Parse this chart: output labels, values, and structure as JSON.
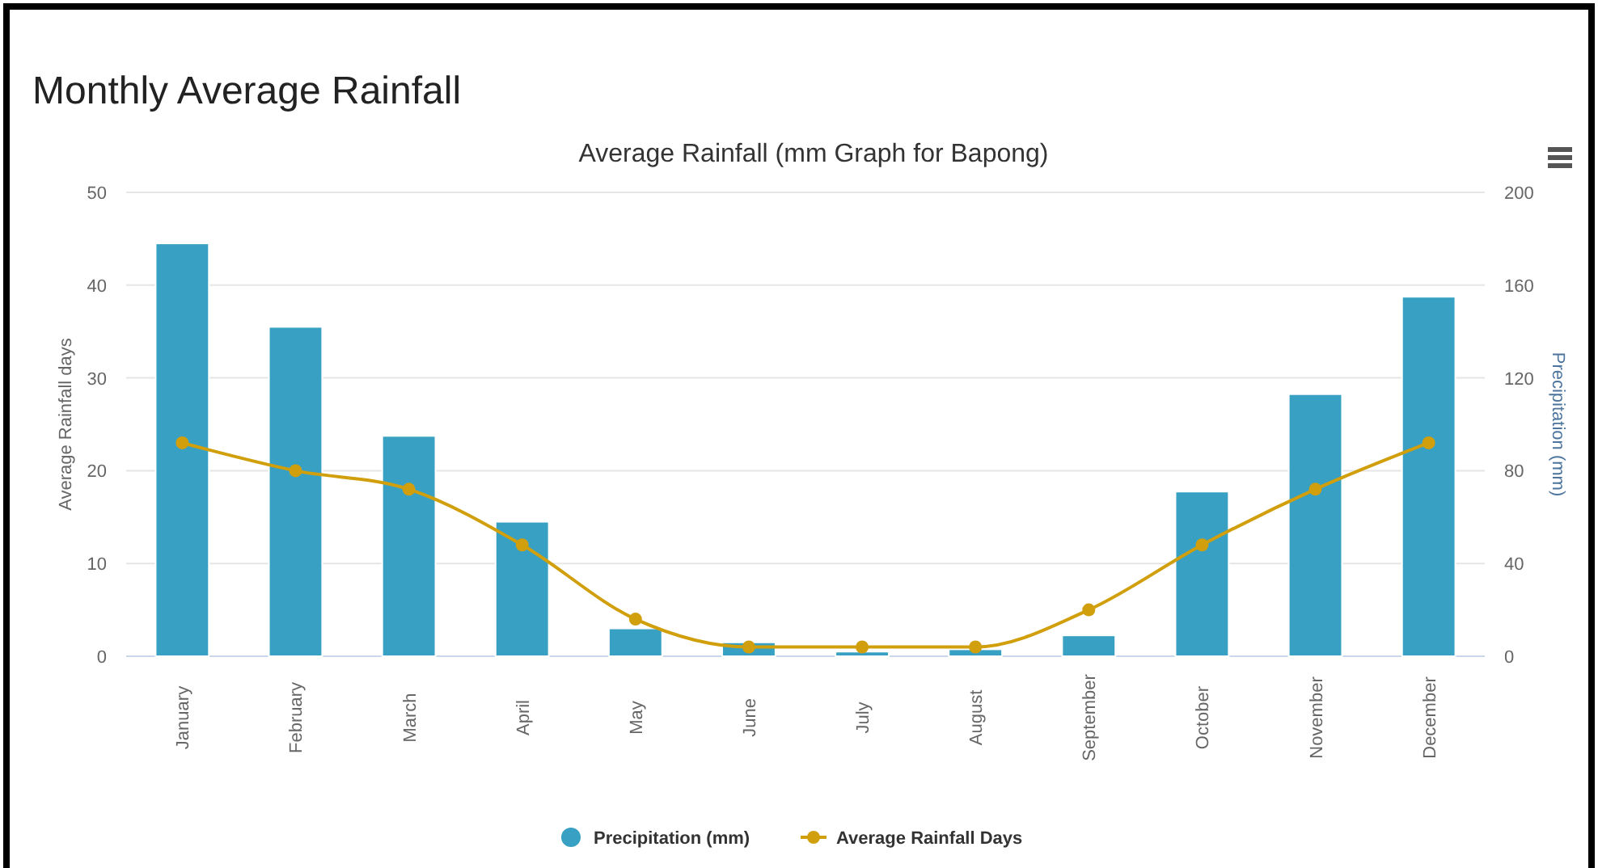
{
  "chart_data": {
    "type": "bar",
    "title": "Monthly Average Rainfall",
    "subtitle": "Average Rainfall (mm Graph for Bapong)",
    "ylabel": "Average Rainfall days",
    "y2label": "Precipitation (mm)",
    "categories": [
      "January",
      "February",
      "March",
      "April",
      "May",
      "June",
      "July",
      "August",
      "September",
      "October",
      "November",
      "December"
    ],
    "series": [
      {
        "name": "Precipitation (mm)",
        "axis": "y2",
        "color": "#38a0c2",
        "values": [
          178,
          142,
          95,
          58,
          12,
          6,
          2,
          3,
          9,
          71,
          113,
          155
        ]
      },
      {
        "name": "Average Rainfall Days",
        "type": "line",
        "color": "#d19f0c",
        "values": [
          23,
          20,
          18,
          12,
          4,
          1,
          1,
          1,
          5,
          12,
          18,
          23
        ]
      }
    ],
    "ylim": [
      0,
      50
    ],
    "yticks": [
      0,
      10,
      20,
      30,
      40,
      50
    ],
    "y2lim": [
      0,
      200
    ],
    "y2ticks": [
      0,
      40,
      80,
      120,
      160,
      200
    ],
    "grid": "y",
    "legend": "bottom",
    "marker": "circle",
    "line_style": "solid"
  }
}
